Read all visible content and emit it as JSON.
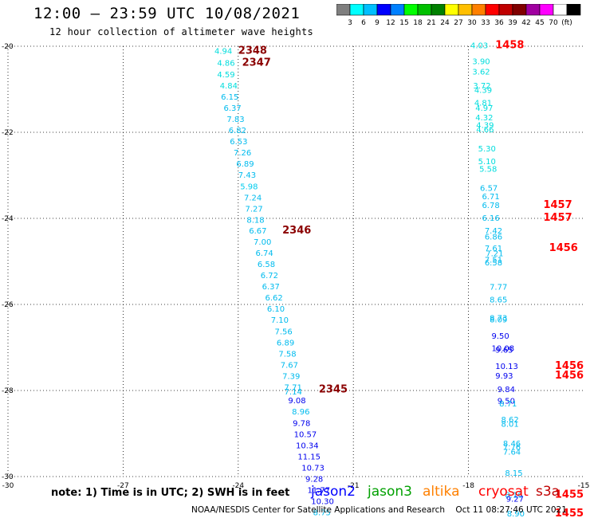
{
  "header": {
    "title": "12:00 — 23:59 UTC 10/08/2021",
    "subtitle": "12 hour collection of altimeter wave heights"
  },
  "colorbar": {
    "colors": [
      "#7f7f7f",
      "#00ffff",
      "#00bfff",
      "#0000ff",
      "#0080ff",
      "#00ff00",
      "#00c000",
      "#008000",
      "#ffff00",
      "#ffbf00",
      "#ff8000",
      "#ff0000",
      "#c00000",
      "#800000",
      "#a000a0",
      "#ff00ff",
      "#ffffff",
      "#000000"
    ],
    "labels": [
      "3",
      "6",
      "9",
      "12",
      "15",
      "18",
      "21",
      "24",
      "27",
      "30",
      "33",
      "36",
      "39",
      "42",
      "45",
      "70",
      "(ft)"
    ]
  },
  "note": "note: 1) Time is in UTC; 2) SWH is in feet",
  "legend": [
    {
      "name": "jason2",
      "color": "#0000ff"
    },
    {
      "name": "jason3",
      "color": "#00a000"
    },
    {
      "name": "altika",
      "color": "#ff8000"
    },
    {
      "name": "cryosat",
      "color": "#ff0000"
    },
    {
      "name": "s3a",
      "color": "#c00000"
    }
  ],
  "footer": "NOAA/NESDIS Center for Satellite Applications and Research    Oct 11 08:27:46 UTC 2021",
  "chart_data": {
    "type": "scatter",
    "xlim": [
      -30,
      -15
    ],
    "ylim": [
      -30,
      -20
    ],
    "x_ticks": [
      "-30",
      "-27",
      "-24",
      "-21",
      "-18",
      "-15"
    ],
    "y_ticks": [
      "-20",
      "-22",
      "-24",
      "-26",
      "-28",
      "-30"
    ],
    "grid": true,
    "tracks": [
      {
        "points": [
          {
            "x": -24.62,
            "y": -20.18,
            "v": "4.94",
            "c": "#00dddd"
          },
          {
            "x": -24.55,
            "y": -20.45,
            "v": "4.86",
            "c": "#00dddd"
          },
          {
            "x": -24.55,
            "y": -20.72,
            "v": "4.59",
            "c": "#00dddd"
          },
          {
            "x": -24.48,
            "y": -20.98,
            "v": "4.84",
            "c": "#00dddd"
          },
          {
            "x": -24.45,
            "y": -21.24,
            "v": "6.15",
            "c": "#00bbee"
          },
          {
            "x": -24.38,
            "y": -21.5,
            "v": "6.37",
            "c": "#00bbee"
          },
          {
            "x": -24.3,
            "y": -21.76,
            "v": "7.83",
            "c": "#00bbee"
          },
          {
            "x": -24.25,
            "y": -22.02,
            "v": "6.82",
            "c": "#00bbee"
          },
          {
            "x": -24.22,
            "y": -22.28,
            "v": "6.53",
            "c": "#00bbee"
          },
          {
            "x": -24.12,
            "y": -22.54,
            "v": "7.26",
            "c": "#00bbee"
          },
          {
            "x": -24.05,
            "y": -22.8,
            "v": "6.89",
            "c": "#00bbee"
          },
          {
            "x": -24.0,
            "y": -23.06,
            "v": "7.43",
            "c": "#00bbee"
          },
          {
            "x": -23.95,
            "y": -23.32,
            "v": "5.98",
            "c": "#00ccee"
          },
          {
            "x": -23.85,
            "y": -23.58,
            "v": "7.24",
            "c": "#00bbee"
          },
          {
            "x": -23.82,
            "y": -23.84,
            "v": "7.27",
            "c": "#00bbee"
          },
          {
            "x": -23.78,
            "y": -24.1,
            "v": "8.18",
            "c": "#00bbee"
          },
          {
            "x": -23.72,
            "y": -24.35,
            "v": "6.67",
            "c": "#00bbee"
          },
          {
            "x": -23.6,
            "y": -24.61,
            "v": "7.00",
            "c": "#00bbee"
          },
          {
            "x": -23.55,
            "y": -24.87,
            "v": "6.74",
            "c": "#00bbee"
          },
          {
            "x": -23.5,
            "y": -25.13,
            "v": "6.58",
            "c": "#00bbee"
          },
          {
            "x": -23.42,
            "y": -25.39,
            "v": "6.72",
            "c": "#00bbee"
          },
          {
            "x": -23.38,
            "y": -25.65,
            "v": "6.37",
            "c": "#00bbee"
          },
          {
            "x": -23.3,
            "y": -25.91,
            "v": "6.62",
            "c": "#00bbee"
          },
          {
            "x": -23.25,
            "y": -26.17,
            "v": "6.10",
            "c": "#00bbee"
          },
          {
            "x": -23.15,
            "y": -26.43,
            "v": "7.10",
            "c": "#00bbee"
          },
          {
            "x": -23.05,
            "y": -26.69,
            "v": "7.56",
            "c": "#00bbee"
          },
          {
            "x": -23.0,
            "y": -26.95,
            "v": "6.89",
            "c": "#00bbee"
          },
          {
            "x": -22.95,
            "y": -27.21,
            "v": "7.58",
            "c": "#00bbee"
          },
          {
            "x": -22.9,
            "y": -27.47,
            "v": "7.67",
            "c": "#00bbee"
          },
          {
            "x": -22.85,
            "y": -27.73,
            "v": "7.39",
            "c": "#00bbee"
          },
          {
            "x": -22.8,
            "y": -27.99,
            "v": "7.71",
            "c": "#00bbee"
          },
          {
            "x": -22.8,
            "y": -28.09,
            "v": "7.14",
            "c": "#00bbee"
          },
          {
            "x": -22.7,
            "y": -28.3,
            "v": "9.08",
            "c": "#0000ee"
          },
          {
            "x": -22.6,
            "y": -28.56,
            "v": "8.96",
            "c": "#00bbee"
          },
          {
            "x": -22.58,
            "y": -28.82,
            "v": "9.78",
            "c": "#0000ee"
          },
          {
            "x": -22.55,
            "y": -29.08,
            "v": "10.57",
            "c": "#0000ee"
          },
          {
            "x": -22.5,
            "y": -29.34,
            "v": "10.34",
            "c": "#0000ee"
          },
          {
            "x": -22.45,
            "y": -29.6,
            "v": "11.15",
            "c": "#0000ee"
          },
          {
            "x": -22.35,
            "y": -29.86,
            "v": "10.73",
            "c": "#0000ee"
          },
          {
            "x": -22.25,
            "y": -30.12,
            "v": "9.28",
            "c": "#0000ee"
          },
          {
            "x": -22.2,
            "y": -30.38,
            "v": "11.77",
            "c": "#0000ee"
          },
          {
            "x": -22.1,
            "y": -30.64,
            "v": "10.30",
            "c": "#0000ee"
          },
          {
            "x": -22.05,
            "y": -30.9,
            "v": "8.75",
            "c": "#00bbee"
          }
        ],
        "time_labels": [
          {
            "x": -24.0,
            "y": -20.18,
            "t": "2348"
          },
          {
            "x": -23.9,
            "y": -20.45,
            "t": "2347"
          },
          {
            "x": -22.85,
            "y": -24.35,
            "t": "2346"
          },
          {
            "x": -21.9,
            "y": -28.05,
            "t": "2345"
          }
        ],
        "time_color": "#8b0000"
      },
      {
        "points": [
          {
            "x": -17.95,
            "y": -20.05,
            "v": "4.03",
            "c": "#00dddd"
          },
          {
            "x": -17.9,
            "y": -20.42,
            "v": "3.90",
            "c": "#00dddd"
          },
          {
            "x": -17.9,
            "y": -20.66,
            "v": "3.62",
            "c": "#00dddd"
          },
          {
            "x": -17.88,
            "y": -20.98,
            "v": "3.72",
            "c": "#00dddd"
          },
          {
            "x": -17.85,
            "y": -21.08,
            "v": "4.39",
            "c": "#00dddd"
          },
          {
            "x": -17.85,
            "y": -21.38,
            "v": "4.81",
            "c": "#00dddd"
          },
          {
            "x": -17.82,
            "y": -21.5,
            "v": "4.97",
            "c": "#00dddd"
          },
          {
            "x": -17.82,
            "y": -21.72,
            "v": "4.32",
            "c": "#00dddd"
          },
          {
            "x": -17.8,
            "y": -21.9,
            "v": "4.39",
            "c": "#00dddd"
          },
          {
            "x": -17.8,
            "y": -22.0,
            "v": "4.66",
            "c": "#00dddd"
          },
          {
            "x": -17.75,
            "y": -22.44,
            "v": "5.30",
            "c": "#00dddd"
          },
          {
            "x": -17.75,
            "y": -22.74,
            "v": "5.10",
            "c": "#00dddd"
          },
          {
            "x": -17.72,
            "y": -22.92,
            "v": "5.58",
            "c": "#00dddd"
          },
          {
            "x": -17.7,
            "y": -23.36,
            "v": "6.57",
            "c": "#00bbee"
          },
          {
            "x": -17.65,
            "y": -23.56,
            "v": "6.71",
            "c": "#00bbee"
          },
          {
            "x": -17.65,
            "y": -23.76,
            "v": "6.78",
            "c": "#00bbee"
          },
          {
            "x": -17.65,
            "y": -24.06,
            "v": "6.16",
            "c": "#00bbee"
          },
          {
            "x": -17.58,
            "y": -24.35,
            "v": "7.42",
            "c": "#00bbee"
          },
          {
            "x": -17.58,
            "y": -24.49,
            "v": "6.86",
            "c": "#00bbee"
          },
          {
            "x": -17.58,
            "y": -24.76,
            "v": "7.61",
            "c": "#00bbee"
          },
          {
            "x": -17.55,
            "y": -24.88,
            "v": "7.21",
            "c": "#00bbee"
          },
          {
            "x": -17.58,
            "y": -25.03,
            "v": "7.51",
            "c": "#00bbee"
          },
          {
            "x": -17.58,
            "y": -25.09,
            "v": "6.58",
            "c": "#00bbee"
          },
          {
            "x": -17.45,
            "y": -25.66,
            "v": "7.77",
            "c": "#00bbee"
          },
          {
            "x": -17.45,
            "y": -25.95,
            "v": "8.65",
            "c": "#00bbee"
          },
          {
            "x": -17.45,
            "y": -26.38,
            "v": "8.73",
            "c": "#00bbee"
          },
          {
            "x": -17.45,
            "y": -26.42,
            "v": "8.09",
            "c": "#00bbee"
          },
          {
            "x": -17.4,
            "y": -26.8,
            "v": "9.50",
            "c": "#0000ee"
          },
          {
            "x": -17.4,
            "y": -27.08,
            "v": "10.08",
            "c": "#0000ee"
          },
          {
            "x": -17.3,
            "y": -27.12,
            "v": "9.65",
            "c": "#0000ee"
          },
          {
            "x": -17.3,
            "y": -27.5,
            "v": "10.13",
            "c": "#0000ee"
          },
          {
            "x": -17.3,
            "y": -27.72,
            "v": "9.93",
            "c": "#0000ee"
          },
          {
            "x": -17.25,
            "y": -28.04,
            "v": "9.84",
            "c": "#0000ee"
          },
          {
            "x": -17.25,
            "y": -28.31,
            "v": "9.50",
            "c": "#0000ee"
          },
          {
            "x": -17.2,
            "y": -28.37,
            "v": "8.71",
            "c": "#00bbee"
          },
          {
            "x": -17.15,
            "y": -28.74,
            "v": "8.62",
            "c": "#00bbee"
          },
          {
            "x": -17.15,
            "y": -28.84,
            "v": "8.01",
            "c": "#00bbee"
          },
          {
            "x": -17.1,
            "y": -29.3,
            "v": "8.46",
            "c": "#00bbee"
          },
          {
            "x": -17.1,
            "y": -29.38,
            "v": "7.76",
            "c": "#00bbee"
          },
          {
            "x": -17.1,
            "y": -29.49,
            "v": "7.64",
            "c": "#00bbee"
          },
          {
            "x": -17.05,
            "y": -29.98,
            "v": "8.15",
            "c": "#00bbee"
          },
          {
            "x": -17.05,
            "y": -30.49,
            "v": "8.16",
            "c": "#00bbee"
          },
          {
            "x": -17.02,
            "y": -30.58,
            "v": "9.27",
            "c": "#0000ee"
          },
          {
            "x": -17.0,
            "y": -30.93,
            "v": "8.90",
            "c": "#00bbee"
          }
        ],
        "time_labels": [
          {
            "x": -17.3,
            "y": -20.05,
            "t": "1458"
          },
          {
            "x": -16.05,
            "y": -23.76,
            "t": "1457"
          },
          {
            "x": -16.05,
            "y": -24.06,
            "t": "1457"
          },
          {
            "x": -15.9,
            "y": -24.76,
            "t": "1456"
          },
          {
            "x": -15.75,
            "y": -27.5,
            "t": "1456"
          },
          {
            "x": -15.75,
            "y": -27.72,
            "t": "1456"
          },
          {
            "x": -15.75,
            "y": -30.49,
            "t": "1455"
          },
          {
            "x": -15.75,
            "y": -30.93,
            "t": "1455"
          }
        ],
        "time_color": "#ff0000"
      }
    ]
  }
}
